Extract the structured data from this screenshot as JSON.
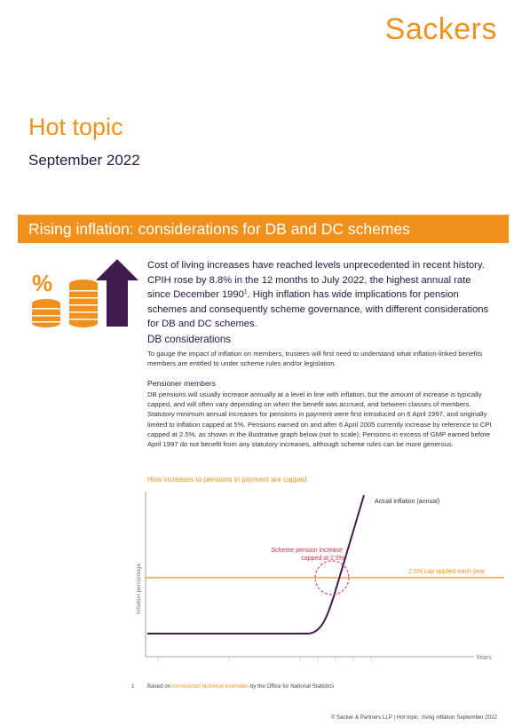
{
  "brand": {
    "logo_text": "Sackers",
    "accent": "#f0911e",
    "dark": "#2d1540"
  },
  "header": {
    "title": "Hot topic",
    "date": "September 2022"
  },
  "banner": {
    "title": "Rising inflation: considerations for DB and DC schemes"
  },
  "intro": {
    "text_before": "Cost of living increases have reached levels unprecedented in recent history. CPIH rose by 8.8% in the 12 months to July 2022, the highest annual rate since December 1990",
    "footnote_ref": "1",
    "text_after": ". High inflation has wide implications for pension schemes and consequently scheme governance, with different considerations for DB and DC schemes.",
    "percent_symbol": "%"
  },
  "db": {
    "heading": "DB considerations",
    "paragraph": "To gauge the impact of inflation on members, trustees will first need to understand what inflation-linked benefits members are entitled to under scheme rules and/or legislation."
  },
  "pensioner": {
    "heading": "Pensioner members",
    "paragraph": "DB pensions will usually increase annually at a level in line with inflation, but the amount of increase is typically capped, and will often vary depending on when the benefit was accrued, and between classes of members. Statutory minimum annual increases for pensions in payment were first introduced on 6 April 1997, and originally limited to inflation capped at 5%. Pensions earned on and after 6 April 2005 currently increase by reference to CPI capped at 2.5%, as shown in the illustrative graph below (not to scale). Pensions in excess of GMP earned before April 1997 do not benefit from any statutory increases, although scheme rules can be more generous."
  },
  "chart_data": {
    "type": "line",
    "title": "How increases to pensions in payment are capped",
    "xlabel": "Years",
    "ylabel": "Inflation percentage",
    "series": [
      {
        "name": "Actual inflation (annual)",
        "color": "#3f1b4e"
      },
      {
        "name": "2.5% cap applied each year",
        "color": "#f0911e"
      }
    ],
    "annotation": "Scheme pension increase capped at 2.5%",
    "grid": false
  },
  "footnote": {
    "number": "1",
    "before": "Based on ",
    "link": "constructed historical estimates",
    "after": " by the Office for National Statistics"
  },
  "footer": {
    "text": "© Sacker & Partners LLP  |  Hot topic: rising inflation September 2022"
  }
}
